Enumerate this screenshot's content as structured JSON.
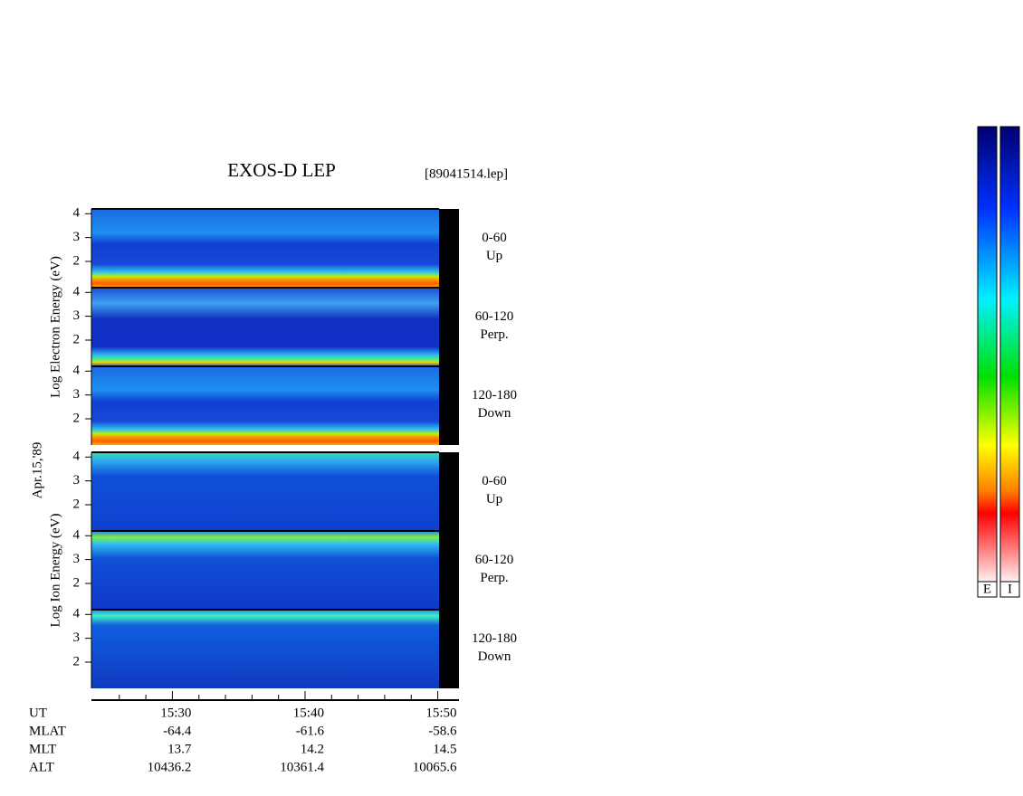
{
  "chart_data": {
    "type": "spectrogram",
    "title": "EXOS-D LEP",
    "file": "[89041514.lep]",
    "date": "Apr.15,'89",
    "xlim": [
      23.9,
      51.6
    ],
    "xticks": [
      {
        "value": 30,
        "label": "15:30"
      },
      {
        "value": 40,
        "label": "15:40"
      },
      {
        "value": 50,
        "label": "15:50"
      }
    ],
    "xminorticks": [
      26,
      28,
      32,
      34,
      36,
      38,
      42,
      44,
      46,
      48
    ],
    "ylim": [
      0.9,
      4.2
    ],
    "yticks": [
      2,
      3,
      4
    ],
    "groups": [
      {
        "ylabel": "Log Electron Energy (eV)",
        "panels": [
          {
            "angle": "0-60",
            "direction": "Up"
          },
          {
            "angle": "60-120",
            "direction": "Perp."
          },
          {
            "angle": "120-180",
            "direction": "Down"
          }
        ]
      },
      {
        "ylabel": "Log Ion Energy (eV)",
        "panels": [
          {
            "angle": "0-60",
            "direction": "Up"
          },
          {
            "angle": "60-120",
            "direction": "Perp."
          },
          {
            "angle": "120-180",
            "direction": "Down"
          }
        ]
      }
    ],
    "ut_label": "UT",
    "orbit": [
      {
        "label": "MLAT",
        "values": [
          -64.4,
          -61.6,
          -58.6
        ]
      },
      {
        "label": "MLT",
        "values": [
          13.7,
          14.2,
          14.5
        ]
      },
      {
        "label": "ALT",
        "values": [
          10436.2,
          10361.4,
          10065.6
        ]
      }
    ],
    "colorbars": [
      "E",
      "I"
    ]
  }
}
